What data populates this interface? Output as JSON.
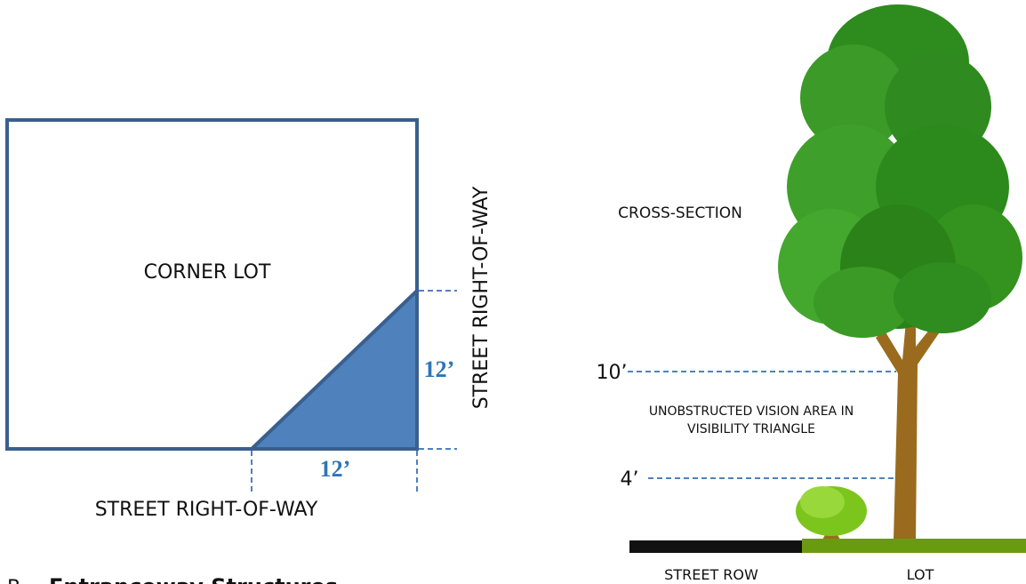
{
  "corner_lot": {
    "label": "CORNER LOT",
    "bottom_street": "STREET RIGHT-OF-WAY",
    "side_street": "STREET RIGHT-OF-WAY",
    "side_length": "12’",
    "bottom_length": "12’"
  },
  "cross_section": {
    "title": "CROSS-SECTION",
    "upper_height": "10’",
    "lower_height": "4’",
    "vision_line1": "UNOBSTRUCTED VISION AREA IN",
    "vision_line2": "VISIBILITY TRIANGLE",
    "street_label": "STREET ROW",
    "lot_label": "LOT"
  },
  "section": {
    "letter": "B.",
    "heading": "Entranceway Structures"
  }
}
